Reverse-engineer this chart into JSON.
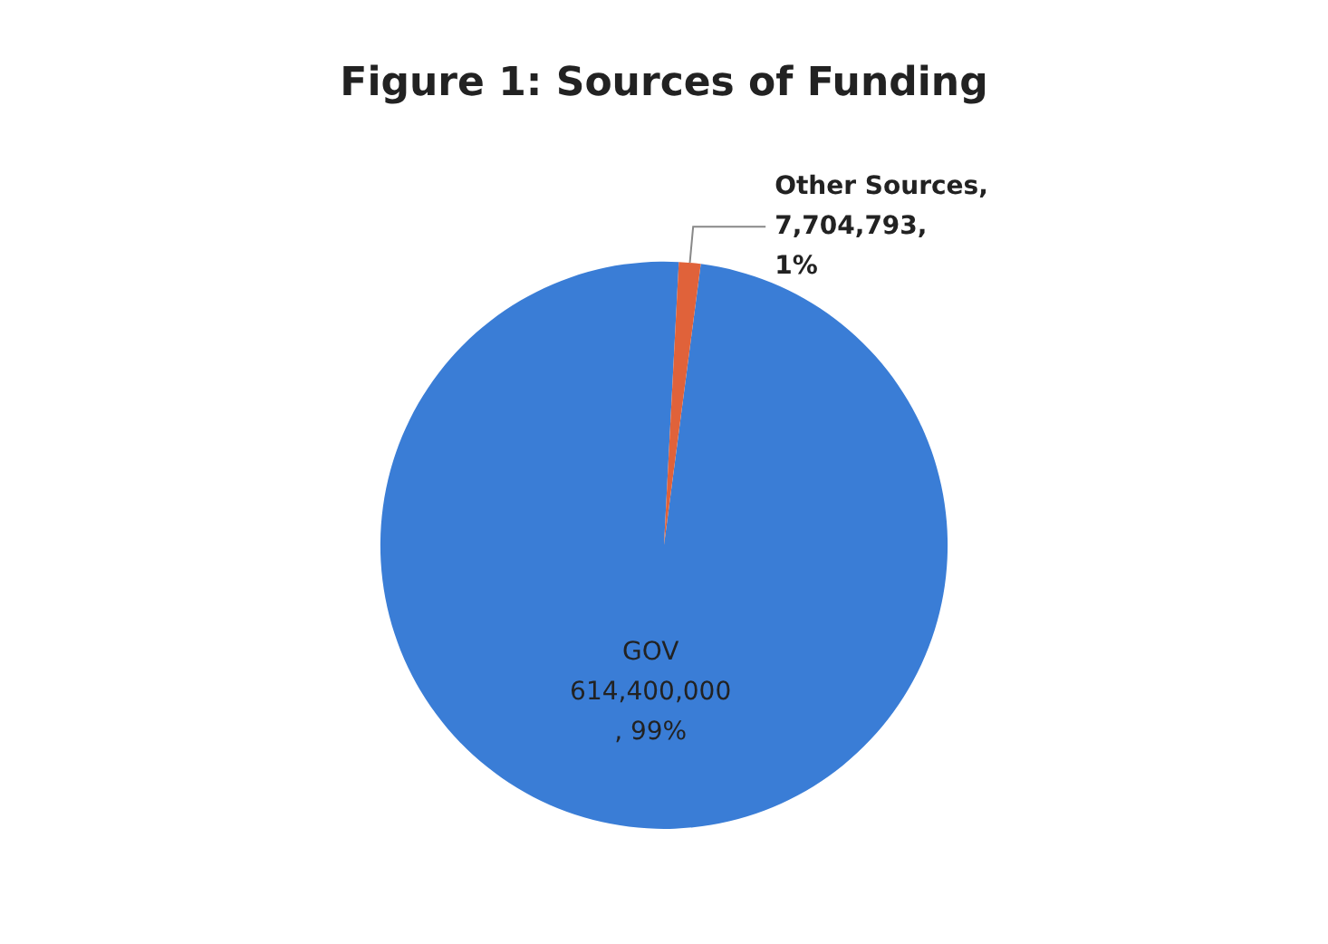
{
  "chart_data": {
    "type": "pie",
    "title": "Figure 1: Sources of Funding",
    "categories": [
      "GOV",
      "Other Sources"
    ],
    "values": [
      614400000,
      7704793
    ],
    "colors": [
      "#3a7dd6",
      "#e0623a"
    ],
    "value_labels": [
      "\n614,400,000\n, 99%",
      ",\n7,704,793,\n1%"
    ],
    "legend": false
  }
}
